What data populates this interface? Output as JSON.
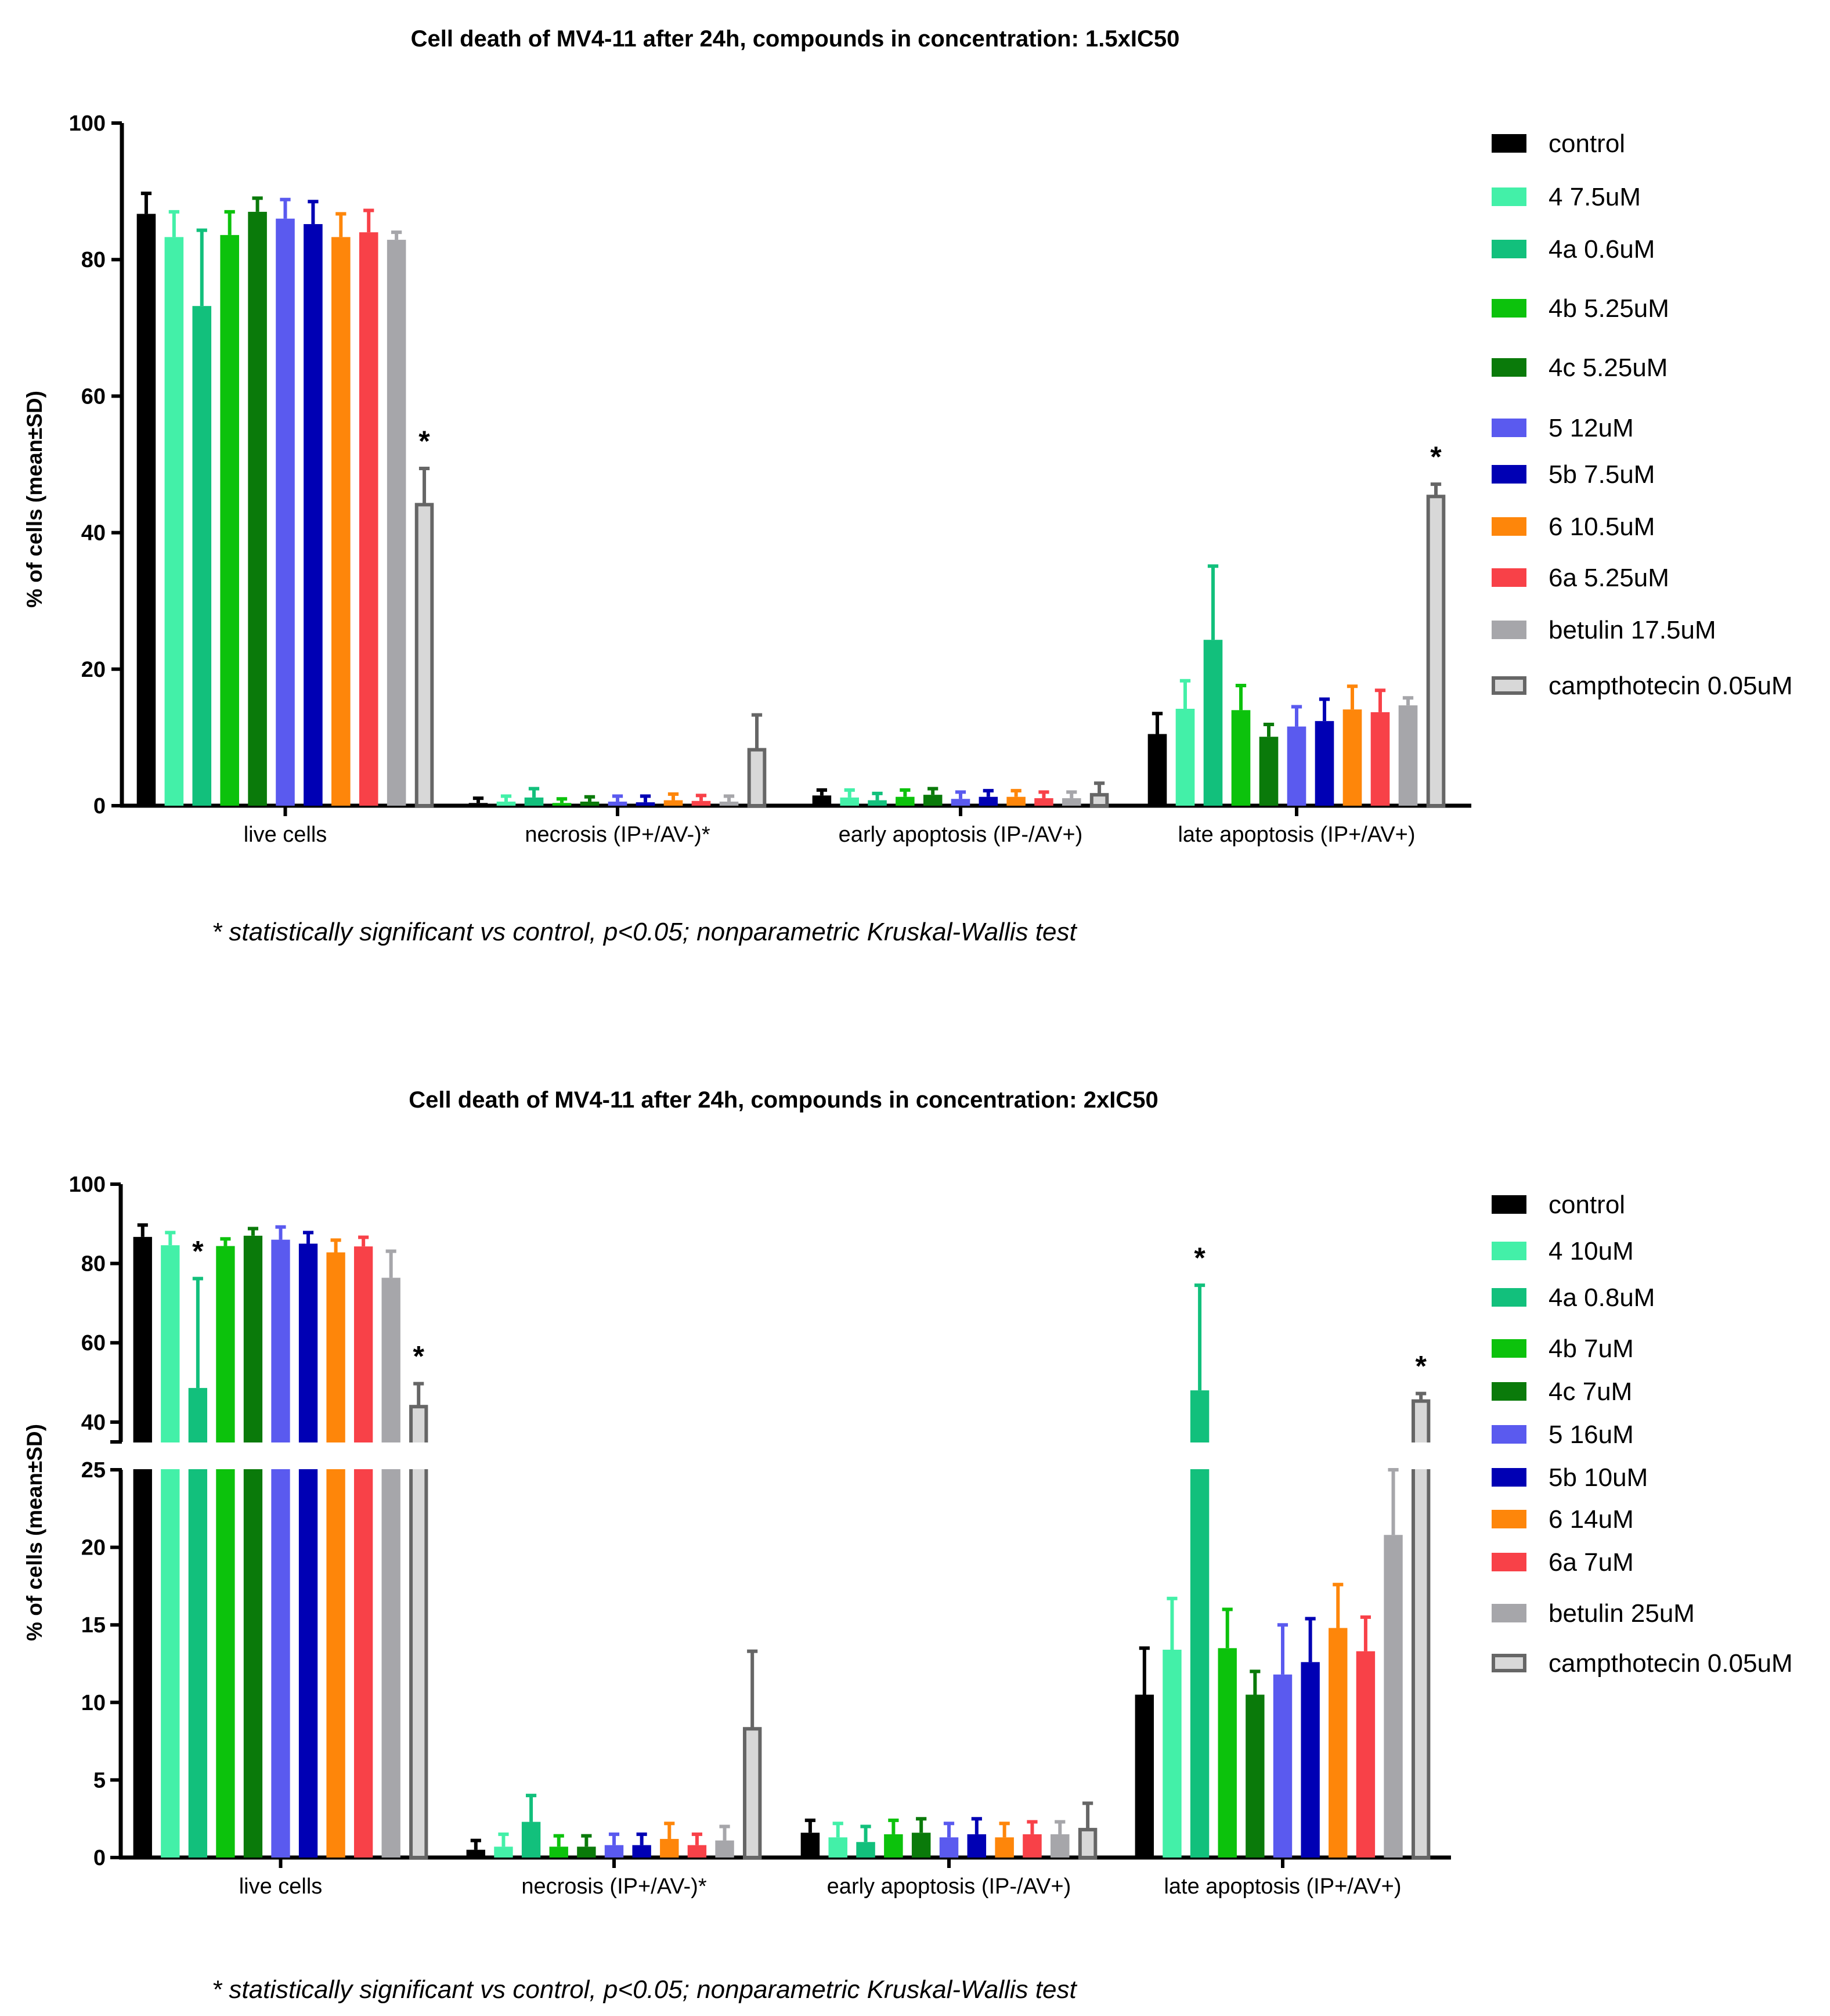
{
  "charts": [
    {
      "title": "Cell death of MV4-11 after 24h, compounds in concentration: 1.5xIC50",
      "ylabel": "% of cells (mean±SD)",
      "footnote": "* statistically significant vs control, p<0.05; nonparametric Kruskal-Wallis test"
    },
    {
      "title": "Cell death of MV4-11 after 24h, compounds in concentration: 2xIC50",
      "ylabel": "% of cells (mean±SD)",
      "footnote": "* statistically significant vs control, p<0.05; nonparametric Kruskal-Wallis test"
    }
  ],
  "chart_data": [
    {
      "type": "bar",
      "title": "Cell death of MV4-11 after 24h, compounds in concentration: 1.5xIC50",
      "xlabel": "",
      "ylabel": "% of cells (mean±SD)",
      "ylim": [
        0,
        100
      ],
      "yticks": [
        "0",
        "20",
        "40",
        "60",
        "80",
        "100"
      ],
      "categories": [
        "live cells",
        "necrosis (IP+/AV-)*",
        "early apoptosis (IP-/AV+)",
        "late apoptosis (IP+/AV+)"
      ],
      "legend_position": "right",
      "series": [
        {
          "name": "control",
          "color": "#000000",
          "values": [
            86.7,
            0.4,
            1.5,
            10.5
          ],
          "sd": [
            3.0,
            0.7,
            0.8,
            3.0
          ],
          "significant": [
            false,
            false,
            false,
            false
          ]
        },
        {
          "name": "4 7.5uM",
          "color": "#43f0a8",
          "values": [
            83.3,
            0.6,
            1.2,
            14.2
          ],
          "sd": [
            3.7,
            0.8,
            1.1,
            4.1
          ],
          "significant": [
            false,
            false,
            false,
            false
          ]
        },
        {
          "name": "4a 0.6uM",
          "color": "#12c07c",
          "values": [
            73.2,
            1.2,
            0.8,
            24.3
          ],
          "sd": [
            11.1,
            1.3,
            1.0,
            10.8
          ],
          "significant": [
            false,
            false,
            false,
            false
          ]
        },
        {
          "name": "4b 5.25uM",
          "color": "#0cc20c",
          "values": [
            83.6,
            0.4,
            1.3,
            14.0
          ],
          "sd": [
            3.4,
            0.6,
            1.0,
            3.6
          ],
          "significant": [
            false,
            false,
            false,
            false
          ]
        },
        {
          "name": "4c 5.25uM",
          "color": "#0a7a0a",
          "values": [
            87.0,
            0.6,
            1.6,
            10.1
          ],
          "sd": [
            2.0,
            0.7,
            0.9,
            1.8
          ],
          "significant": [
            false,
            false,
            false,
            false
          ]
        },
        {
          "name": "5 12uM",
          "color": "#5a5aef",
          "values": [
            86.0,
            0.6,
            1.0,
            11.6
          ],
          "sd": [
            2.8,
            0.8,
            1.0,
            2.9
          ],
          "significant": [
            false,
            false,
            false,
            false
          ]
        },
        {
          "name": "5b 7.5uM",
          "color": "#0000b4",
          "values": [
            85.2,
            0.5,
            1.3,
            12.4
          ],
          "sd": [
            3.3,
            0.9,
            0.9,
            3.2
          ],
          "significant": [
            false,
            false,
            false,
            false
          ]
        },
        {
          "name": "6 10.5uM",
          "color": "#fe860a",
          "values": [
            83.3,
            0.8,
            1.3,
            14.1
          ],
          "sd": [
            3.4,
            0.9,
            0.9,
            3.4
          ],
          "significant": [
            false,
            false,
            false,
            false
          ]
        },
        {
          "name": "6a 5.25uM",
          "color": "#f84148",
          "values": [
            84.0,
            0.7,
            1.1,
            13.7
          ],
          "sd": [
            3.2,
            0.8,
            0.9,
            3.2
          ],
          "significant": [
            false,
            false,
            false,
            false
          ]
        },
        {
          "name": "betulin 17.5uM",
          "color": "#a6a6aa",
          "values": [
            82.9,
            0.6,
            1.1,
            14.7
          ],
          "sd": [
            1.1,
            0.8,
            0.9,
            1.1
          ],
          "significant": [
            false,
            false,
            false,
            false
          ]
        },
        {
          "name": "campthotecin 0.05uM",
          "color": "#d8d8d8",
          "outline": "#666666",
          "values": [
            44.1,
            8.2,
            1.6,
            45.3
          ],
          "sd": [
            5.3,
            5.1,
            1.7,
            1.8
          ],
          "significant": [
            true,
            false,
            false,
            true
          ]
        }
      ]
    },
    {
      "type": "bar",
      "title": "Cell death of MV4-11 after 24h, compounds in concentration: 2xIC50",
      "xlabel": "",
      "ylabel": "% of cells (mean±SD)",
      "y_axis_broken": true,
      "ylim_lower": [
        0,
        25
      ],
      "ylim_upper": [
        35,
        100
      ],
      "yticks_lower": [
        "0",
        "5",
        "10",
        "15",
        "20",
        "25"
      ],
      "yticks_upper": [
        "40",
        "60",
        "80",
        "100"
      ],
      "categories": [
        "live cells",
        "necrosis (IP+/AV-)*",
        "early apoptosis (IP-/AV+)",
        "late apoptosis (IP+/AV+)"
      ],
      "legend_position": "right",
      "series": [
        {
          "name": "control",
          "color": "#000000",
          "values": [
            86.7,
            0.5,
            1.6,
            10.5
          ],
          "sd": [
            3.0,
            0.6,
            0.8,
            3.0
          ],
          "significant": [
            false,
            false,
            false,
            false
          ]
        },
        {
          "name": "4 10uM",
          "color": "#43f0a8",
          "values": [
            84.6,
            0.7,
            1.3,
            13.4
          ],
          "sd": [
            3.2,
            0.8,
            0.9,
            3.3
          ],
          "significant": [
            false,
            false,
            false,
            false
          ]
        },
        {
          "name": "4a 0.8uM",
          "color": "#12c07c",
          "values": [
            48.6,
            2.3,
            1.0,
            48.0
          ],
          "sd": [
            27.6,
            1.7,
            1.0,
            26.5
          ],
          "significant": [
            true,
            false,
            false,
            true
          ]
        },
        {
          "name": "4b 7uM",
          "color": "#0cc20c",
          "values": [
            84.4,
            0.7,
            1.5,
            13.5
          ],
          "sd": [
            1.8,
            0.7,
            0.9,
            2.5
          ],
          "significant": [
            false,
            false,
            false,
            false
          ]
        },
        {
          "name": "4c 7uM",
          "color": "#0a7a0a",
          "values": [
            87.0,
            0.7,
            1.6,
            10.5
          ],
          "sd": [
            1.8,
            0.7,
            0.9,
            1.5
          ],
          "significant": [
            false,
            false,
            false,
            false
          ]
        },
        {
          "name": "5 16uM",
          "color": "#5a5aef",
          "values": [
            86.0,
            0.8,
            1.3,
            11.8
          ],
          "sd": [
            3.2,
            0.7,
            0.9,
            3.2
          ],
          "significant": [
            false,
            false,
            false,
            false
          ]
        },
        {
          "name": "5b 10uM",
          "color": "#0000b4",
          "values": [
            85.0,
            0.8,
            1.5,
            12.6
          ],
          "sd": [
            2.8,
            0.7,
            1.0,
            2.8
          ],
          "significant": [
            false,
            false,
            false,
            false
          ]
        },
        {
          "name": "6 14uM",
          "color": "#fe860a",
          "values": [
            82.8,
            1.2,
            1.3,
            14.8
          ],
          "sd": [
            3.1,
            1.0,
            0.9,
            2.8
          ],
          "significant": [
            false,
            false,
            false,
            false
          ]
        },
        {
          "name": "6a 7uM",
          "color": "#f84148",
          "values": [
            84.3,
            0.8,
            1.5,
            13.3
          ],
          "sd": [
            2.3,
            0.7,
            0.8,
            2.2
          ],
          "significant": [
            false,
            false,
            false,
            false
          ]
        },
        {
          "name": "betulin 25uM",
          "color": "#a6a6aa",
          "values": [
            76.4,
            1.1,
            1.5,
            20.8
          ],
          "sd": [
            6.7,
            0.9,
            0.8,
            6.5
          ],
          "significant": [
            false,
            false,
            false,
            false
          ]
        },
        {
          "name": "campthotecin 0.05uM",
          "color": "#d8d8d8",
          "outline": "#666666",
          "values": [
            43.9,
            8.3,
            1.8,
            45.3
          ],
          "sd": [
            5.8,
            5.0,
            1.7,
            1.9
          ],
          "significant": [
            true,
            false,
            false,
            true
          ]
        }
      ]
    }
  ]
}
